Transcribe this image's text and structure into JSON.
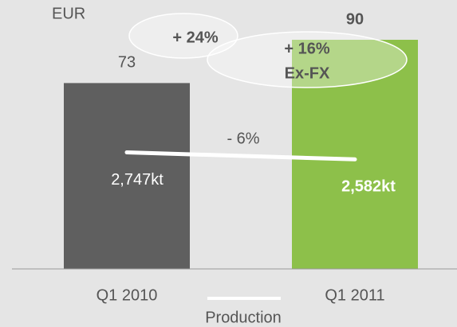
{
  "chart_data": {
    "type": "bar",
    "unit": "EUR",
    "categories": [
      "Q1 2010",
      "Q1 2011"
    ],
    "values": [
      73,
      90
    ],
    "colors": [
      "#5f5f5f",
      "#8dc04a"
    ],
    "ylim": [
      0,
      100
    ],
    "line": {
      "name": "Production",
      "color": "#ffffff",
      "axis": "y2",
      "values": [
        2747,
        2582
      ],
      "value_labels": [
        "2,747kt",
        "2,582kt"
      ]
    },
    "y2lim": [
      0,
      6000
    ],
    "annotations": [
      "+ 24%",
      "+ 16%",
      "Ex-FX",
      "- 6%"
    ]
  }
}
